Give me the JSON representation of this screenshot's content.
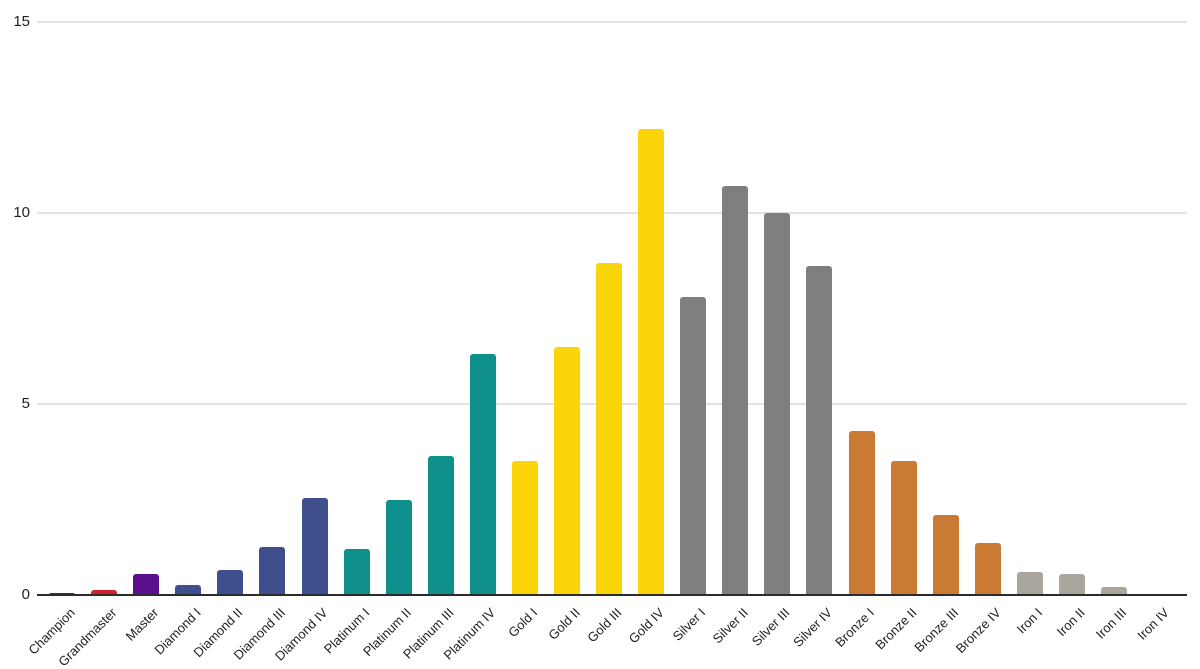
{
  "chart_data": {
    "type": "bar",
    "title": "",
    "xlabel": "",
    "ylabel": "",
    "categories": [
      "Champion",
      "Grandmaster",
      "Master",
      "Diamond I",
      "Diamond II",
      "Diamond III",
      "Diamond IV",
      "Platinum I",
      "Platinum II",
      "Platinum III",
      "Platinum IV",
      "Gold I",
      "Gold II",
      "Gold III",
      "Gold IV",
      "Silver I",
      "Silver II",
      "Silver III",
      "Silver IV",
      "Bronze I",
      "Bronze II",
      "Bronze III",
      "Bronze IV",
      "Iron I",
      "Iron II",
      "Iron III",
      "Iron IV"
    ],
    "values": [
      0.05,
      0.12,
      0.55,
      0.25,
      0.65,
      1.25,
      2.55,
      1.2,
      2.5,
      3.65,
      6.3,
      3.5,
      6.5,
      8.7,
      12.2,
      7.8,
      10.7,
      10.0,
      8.6,
      4.3,
      3.5,
      2.1,
      1.35,
      0.6,
      0.55,
      0.2,
      0.02
    ],
    "bar_colors": [
      "#27307e",
      "#cf2030",
      "#5c0f8d",
      "#3f4e8d",
      "#3f4e8d",
      "#3f4e8d",
      "#3f4e8d",
      "#0e8f8c",
      "#0e8f8c",
      "#0e8f8c",
      "#0e8f8c",
      "#fcd40a",
      "#fcd40a",
      "#fcd40a",
      "#fcd40a",
      "#7f7f7f",
      "#7f7f7f",
      "#7f7f7f",
      "#7f7f7f",
      "#cb7a34",
      "#cb7a34",
      "#cb7a34",
      "#cb7a34",
      "#aaa69d",
      "#aaa69d",
      "#aaa69d",
      "#aaa69d"
    ],
    "ylim": [
      0,
      15
    ],
    "yticks": [
      0,
      5,
      10,
      15
    ],
    "ytick_labels": [
      "0",
      "5",
      "10",
      "15"
    ],
    "grid": "horizontal",
    "legend_position": "none",
    "colors_meta": {
      "grid_color": "#e2e2e2",
      "axis_color": "#2b2b2b",
      "text_color": "#1f1f1f",
      "background": "#ffffff"
    }
  }
}
